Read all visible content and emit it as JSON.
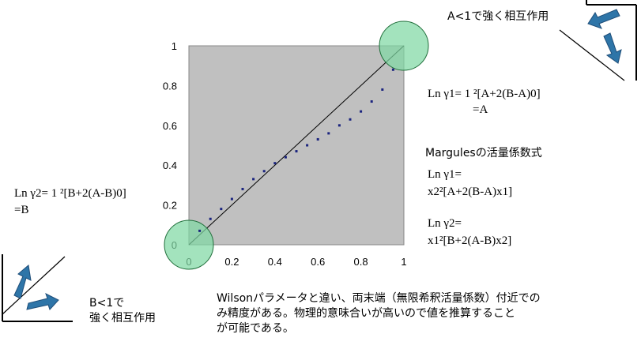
{
  "chart_data": {
    "type": "scatter",
    "xlim": [
      0,
      1
    ],
    "ylim": [
      0,
      1
    ],
    "x_ticks": [
      "0",
      "0.2",
      "0.4",
      "0.6",
      "0.8",
      "1"
    ],
    "y_ticks": [
      "0",
      "0.2",
      "0.4",
      "0.6",
      "0.8",
      "1"
    ],
    "grid": false,
    "plot_background": "#c0c0c0",
    "series": [
      {
        "x": [
          0.05,
          0.1,
          0.15,
          0.2,
          0.25,
          0.3,
          0.35,
          0.4,
          0.45,
          0.5,
          0.55,
          0.6,
          0.65,
          0.7,
          0.75,
          0.8,
          0.85,
          0.9,
          0.95
        ],
        "y": [
          0.07,
          0.13,
          0.18,
          0.23,
          0.28,
          0.33,
          0.37,
          0.41,
          0.44,
          0.47,
          0.5,
          0.53,
          0.56,
          0.6,
          0.63,
          0.67,
          0.72,
          0.78,
          0.88
        ],
        "color": "#1a237e"
      }
    ],
    "reference_line": {
      "x": [
        0,
        1
      ],
      "y": [
        0,
        1
      ],
      "color": "#000000"
    },
    "highlight_circles": [
      {
        "x": 0,
        "y": 0,
        "color": "#7fd8a4"
      },
      {
        "x": 1,
        "y": 1,
        "color": "#7fd8a4"
      }
    ]
  },
  "annotations": {
    "top_right_label": "A<1で強く相互作用",
    "ln_g1_line1": "Ln γ1= 1 ²[A+2(B-A)0]",
    "ln_g1_line2": "=A",
    "margules_title": "Margulesの活量係数式",
    "margules_g1_line1": "Ln γ1=",
    "margules_g1_line2": "x2²[A+2(B-A)x1]",
    "margules_g2_line1": "Ln γ2=",
    "margules_g2_line2": "x1²[B+2(A-B)x2]",
    "ln_g2_line1": "Ln γ2= 1 ²[B+2(A-B)0]",
    "ln_g2_line2": "=B",
    "bottom_left_label_line1": "B<1で",
    "bottom_left_label_line2": "強く相互作用",
    "note_line1": "Wilsonパラメータと違い、両末端（無限希釈活量係数）付近での",
    "note_line2": "み精度がある。物理的意味合いが高いので値を推算すること",
    "note_line3": "が可能である。"
  },
  "colors": {
    "arrow_fill": "#2e75a8",
    "arrow_stroke": "#1f4e79",
    "circle_fill": "#7fd8a4",
    "circle_stroke": "#1f6e3a"
  }
}
